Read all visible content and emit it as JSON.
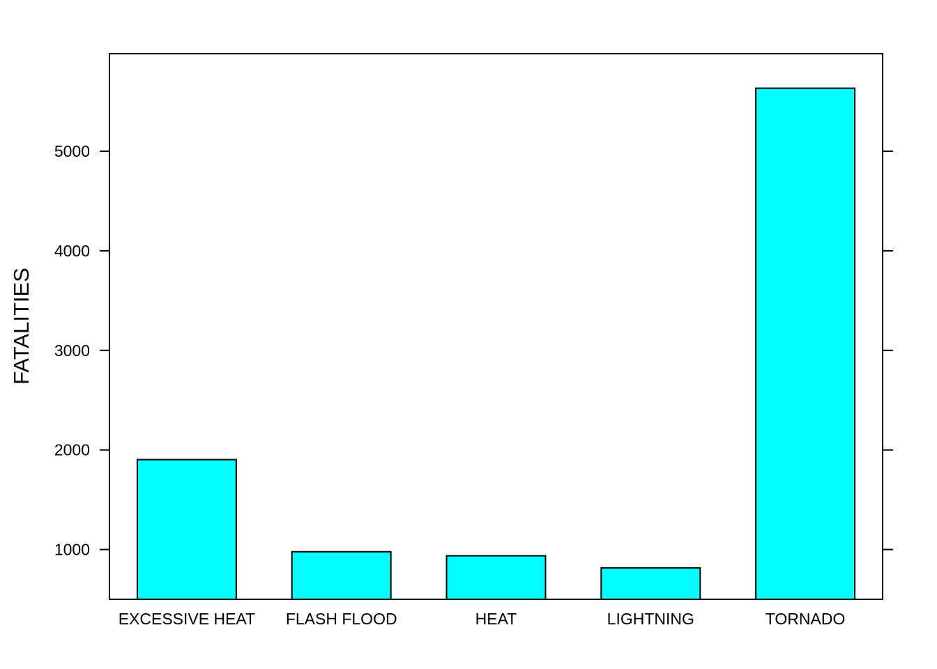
{
  "chart_data": {
    "type": "bar",
    "title": "",
    "xlabel": "",
    "ylabel": "FATALITIES",
    "categories": [
      "EXCESSIVE HEAT",
      "FLASH FLOOD",
      "HEAT",
      "LIGHTNING",
      "TORNADO"
    ],
    "values": [
      1903,
      978,
      937,
      816,
      5633
    ],
    "ylim": [
      500,
      5980
    ],
    "yticks": [
      1000,
      2000,
      3000,
      4000,
      5000
    ],
    "ytick_labels": [
      "1000",
      "2000",
      "3000",
      "4000",
      "5000"
    ],
    "grid": false,
    "legend": "none",
    "colors": {
      "bar_fill": "#00FFFF",
      "bar_stroke": "#000000",
      "axis": "#000000",
      "background": "#FFFFFF"
    }
  }
}
